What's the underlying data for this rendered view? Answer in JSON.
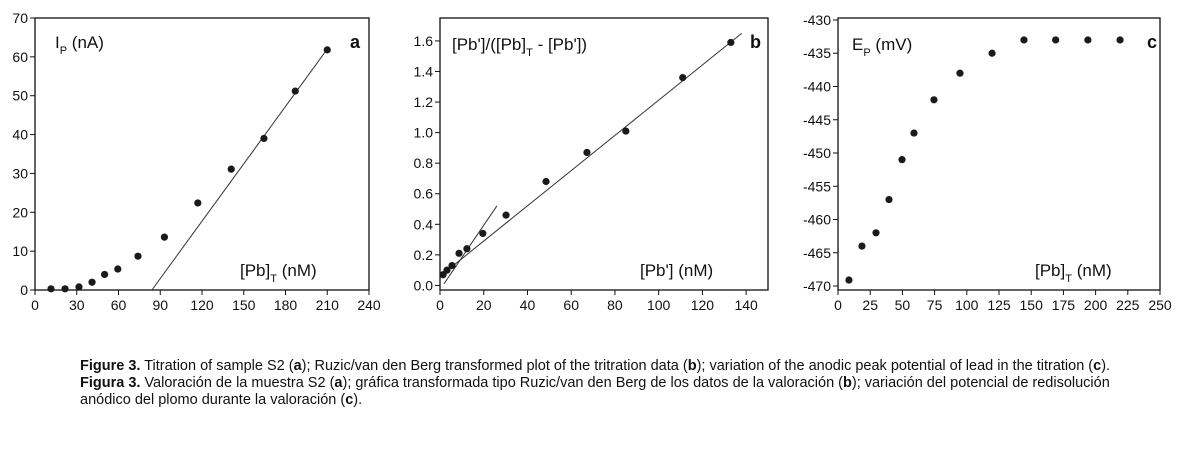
{
  "chart_data": [
    {
      "type": "scatter",
      "panel": "a",
      "ylabel": [
        "I",
        "P",
        " (nA)"
      ],
      "xlabel": [
        "[Pb]",
        "T",
        " (nM)"
      ],
      "x": [
        11.5,
        21.6,
        31.6,
        41,
        50,
        59.5,
        74,
        93,
        117,
        141,
        164.5,
        187,
        210
      ],
      "values": [
        0.3,
        0.3,
        0.8,
        2,
        4,
        5.4,
        8.7,
        13.6,
        22.4,
        31.1,
        39,
        51.2,
        61.8
      ],
      "color": "#1a1a1a",
      "fit_lines": [
        {
          "x": [
            84,
            210
          ],
          "y": [
            0,
            62
          ]
        }
      ],
      "xlim": [
        0,
        240
      ],
      "xticks": [
        0,
        30,
        60,
        90,
        120,
        150,
        180,
        210,
        240
      ],
      "ylim": [
        0,
        70
      ],
      "yticks": [
        0,
        10,
        20,
        30,
        40,
        50,
        60,
        70
      ]
    },
    {
      "type": "scatter",
      "panel": "b",
      "ylabel": [
        "[Pb']/([Pb]",
        "T",
        " - [Pb'])"
      ],
      "xlabel": [
        "[Pb']",
        "",
        " (nM)"
      ],
      "x": [
        1.4,
        3.2,
        5.5,
        8.7,
        12.3,
        19.6,
        30.2,
        48.5,
        67.2,
        85,
        111,
        133
      ],
      "values": [
        0.07,
        0.1,
        0.13,
        0.21,
        0.24,
        0.34,
        0.46,
        0.68,
        0.87,
        1.01,
        1.36,
        1.59
      ],
      "color": "#1a1a1a",
      "fit_lines": [
        {
          "x": [
            0,
            138
          ],
          "y": [
            0.06,
            1.65
          ]
        },
        {
          "x": [
            1.8,
            26
          ],
          "y": [
            0.01,
            0.52
          ]
        }
      ],
      "xlim": [
        0,
        150
      ],
      "xticks": [
        0,
        20,
        40,
        60,
        80,
        100,
        120,
        140
      ],
      "ylim": [
        -0.03,
        1.75
      ],
      "yticks": [
        {
          "value": 0,
          "label": "0.0"
        },
        0.2,
        0.4,
        0.6,
        0.8,
        {
          "value": 1,
          "label": "1.0"
        },
        1.2,
        1.4,
        1.6
      ]
    },
    {
      "type": "scatter",
      "panel": "c",
      "ylabel": [
        "E",
        "P",
        " (mV)"
      ],
      "xlabel": [
        "[Pb]",
        "T",
        " (nM)"
      ],
      "x": [
        8.5,
        18.6,
        29.5,
        39.6,
        49.7,
        59,
        74.5,
        94.7,
        119.6,
        144.4,
        169,
        194,
        219
      ],
      "values": [
        -469.1,
        -464,
        -462,
        -457,
        -451,
        -447,
        -442,
        -438,
        -435,
        -433,
        -433,
        -433,
        -433
      ],
      "color": "#1a1a1a",
      "fit_lines": [],
      "xlim": [
        0,
        250
      ],
      "xticks": [
        0,
        25,
        50,
        75,
        100,
        125,
        150,
        175,
        200,
        225,
        250
      ],
      "ylim": [
        -470.6,
        -429.7
      ],
      "yticks": [
        -470,
        -465,
        -460,
        -455,
        -450,
        -445,
        -440,
        -435,
        -430
      ]
    }
  ],
  "caption": [
    [
      {
        "text": "Figure 3.",
        "bold": true
      },
      {
        "text": " Titration of sample S2 (",
        "bold": false
      },
      {
        "text": "a",
        "bold": true
      },
      {
        "text": "); Ruzic/van den Berg transformed plot of the tritration data (",
        "bold": false
      },
      {
        "text": "b",
        "bold": true
      },
      {
        "text": "); variation of the anodic peak potential of lead in the titration (",
        "bold": false
      },
      {
        "text": "c",
        "bold": true
      },
      {
        "text": ").",
        "bold": false
      }
    ],
    [
      {
        "text": "Figura 3.",
        "bold": true
      },
      {
        "text": " Valoración de la muestra S2 (",
        "bold": false
      },
      {
        "text": "a",
        "bold": true
      },
      {
        "text": "); gráfica transformada tipo Ruzic/van den Berg de los datos de la valoración (",
        "bold": false
      },
      {
        "text": "b",
        "bold": true
      },
      {
        "text": "); variación del potencial de redisolución anódico del plomo durante la valoración (",
        "bold": false
      },
      {
        "text": "c",
        "bold": true
      },
      {
        "text": ").",
        "bold": false
      }
    ]
  ]
}
